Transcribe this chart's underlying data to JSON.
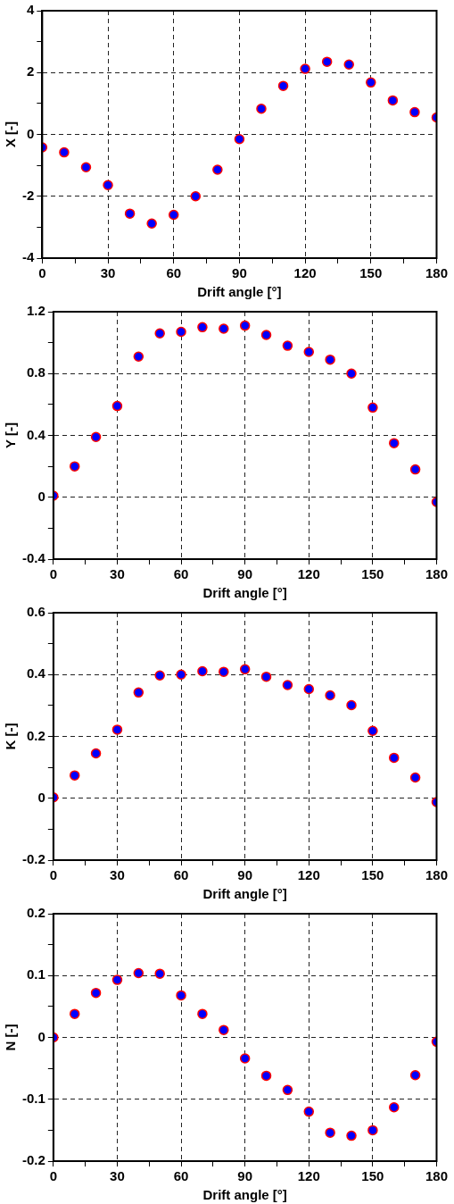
{
  "chart_data": [
    {
      "type": "scatter",
      "xlabel": "Drift angle [°]",
      "ylabel": "X [-]",
      "x": [
        0,
        10,
        20,
        30,
        40,
        50,
        60,
        70,
        80,
        90,
        100,
        110,
        120,
        130,
        140,
        150,
        160,
        170,
        180
      ],
      "marker": "circle",
      "grid": true,
      "legend": false,
      "xlim": [
        0,
        180
      ],
      "xticks": [
        0,
        {
          "value": 15,
          "label": null
        },
        30,
        {
          "value": 45,
          "label": null
        },
        60,
        {
          "value": 75,
          "label": null
        },
        90,
        {
          "value": 105,
          "label": null
        },
        120,
        {
          "value": 135,
          "label": null
        },
        150,
        {
          "value": 165,
          "label": null
        },
        180
      ],
      "ylim": [
        -4,
        4
      ],
      "yticks": [
        -4,
        {
          "value": -3,
          "label": null
        },
        -2,
        {
          "value": -1,
          "label": null
        },
        0,
        {
          "value": 1,
          "label": null
        },
        2,
        {
          "value": 3,
          "label": null
        },
        4
      ],
      "series": [
        {
          "color": "#0000ff",
          "values": [
            -0.42,
            -0.58,
            -1.06,
            -1.64,
            -2.56,
            -2.88,
            -2.6,
            -2.0,
            -1.14,
            -0.15,
            0.83,
            1.57,
            2.12,
            2.35,
            2.26,
            1.68,
            1.1,
            0.72,
            0.55
          ]
        }
      ]
    },
    {
      "type": "scatter",
      "xlabel": "Drift angle [°]",
      "ylabel": "Y [-]",
      "x": [
        0,
        10,
        20,
        30,
        40,
        50,
        60,
        70,
        80,
        90,
        100,
        110,
        120,
        130,
        140,
        150,
        160,
        170,
        180
      ],
      "marker": "circle",
      "grid": true,
      "legend": false,
      "xlim": [
        0,
        180
      ],
      "xticks": [
        0,
        {
          "value": 15,
          "label": null
        },
        30,
        {
          "value": 45,
          "label": null
        },
        60,
        {
          "value": 75,
          "label": null
        },
        90,
        {
          "value": 105,
          "label": null
        },
        120,
        {
          "value": 135,
          "label": null
        },
        150,
        {
          "value": 165,
          "label": null
        },
        180
      ],
      "ylim": [
        -0.4,
        1.2
      ],
      "yticks": [
        -0.4,
        {
          "value": -0.2,
          "label": null
        },
        0,
        {
          "value": 0.2,
          "label": null
        },
        0.4,
        {
          "value": 0.6,
          "label": null
        },
        0.8,
        {
          "value": 1.0,
          "label": null
        },
        1.2
      ],
      "series": [
        {
          "color": "#0000ff",
          "values": [
            0.01,
            0.2,
            0.39,
            0.59,
            0.91,
            1.06,
            1.07,
            1.1,
            1.09,
            1.11,
            1.05,
            0.98,
            0.94,
            0.89,
            0.8,
            0.58,
            0.35,
            0.18,
            -0.03
          ]
        }
      ]
    },
    {
      "type": "scatter",
      "xlabel": "Drift angle [°]",
      "ylabel": "K [-]",
      "x": [
        0,
        10,
        20,
        30,
        40,
        50,
        60,
        70,
        80,
        90,
        100,
        110,
        120,
        130,
        140,
        150,
        160,
        170,
        180
      ],
      "marker": "circle",
      "grid": true,
      "legend": false,
      "xlim": [
        0,
        180
      ],
      "xticks": [
        0,
        {
          "value": 15,
          "label": null
        },
        30,
        {
          "value": 45,
          "label": null
        },
        60,
        {
          "value": 75,
          "label": null
        },
        90,
        {
          "value": 105,
          "label": null
        },
        120,
        {
          "value": 135,
          "label": null
        },
        150,
        {
          "value": 165,
          "label": null
        },
        180
      ],
      "ylim": [
        -0.2,
        0.6
      ],
      "yticks": [
        -0.2,
        {
          "value": -0.1,
          "label": null
        },
        0,
        {
          "value": 0.1,
          "label": null
        },
        0.2,
        {
          "value": 0.3,
          "label": null
        },
        0.4,
        {
          "value": 0.5,
          "label": null
        },
        0.6
      ],
      "series": [
        {
          "color": "#0000ff",
          "values": [
            0.003,
            0.074,
            0.145,
            0.222,
            0.342,
            0.397,
            0.4,
            0.411,
            0.409,
            0.417,
            0.393,
            0.366,
            0.353,
            0.333,
            0.301,
            0.218,
            0.131,
            0.067,
            -0.012
          ]
        }
      ]
    },
    {
      "type": "scatter",
      "xlabel": "Drift angle [°]",
      "ylabel": "N [-]",
      "x": [
        0,
        10,
        20,
        30,
        40,
        50,
        60,
        70,
        80,
        90,
        100,
        110,
        120,
        130,
        140,
        150,
        160,
        170,
        180
      ],
      "marker": "circle",
      "grid": true,
      "legend": false,
      "xlim": [
        0,
        180
      ],
      "xticks": [
        0,
        {
          "value": 15,
          "label": null
        },
        30,
        {
          "value": 45,
          "label": null
        },
        60,
        {
          "value": 75,
          "label": null
        },
        90,
        {
          "value": 105,
          "label": null
        },
        120,
        {
          "value": 135,
          "label": null
        },
        150,
        {
          "value": 165,
          "label": null
        },
        180
      ],
      "ylim": [
        -0.2,
        0.2
      ],
      "yticks": [
        -0.2,
        {
          "value": -0.15,
          "label": null
        },
        -0.1,
        {
          "value": -0.05,
          "label": null
        },
        0,
        {
          "value": 0.05,
          "label": null
        },
        0.1,
        {
          "value": 0.15,
          "label": null
        },
        0.2
      ],
      "series": [
        {
          "color": "#0000ff",
          "values": [
            0,
            0.038,
            0.072,
            0.093,
            0.104,
            0.103,
            0.068,
            0.038,
            0.012,
            -0.034,
            -0.062,
            -0.085,
            -0.12,
            -0.154,
            -0.159,
            -0.15,
            -0.113,
            -0.061,
            -0.007
          ]
        }
      ]
    }
  ]
}
